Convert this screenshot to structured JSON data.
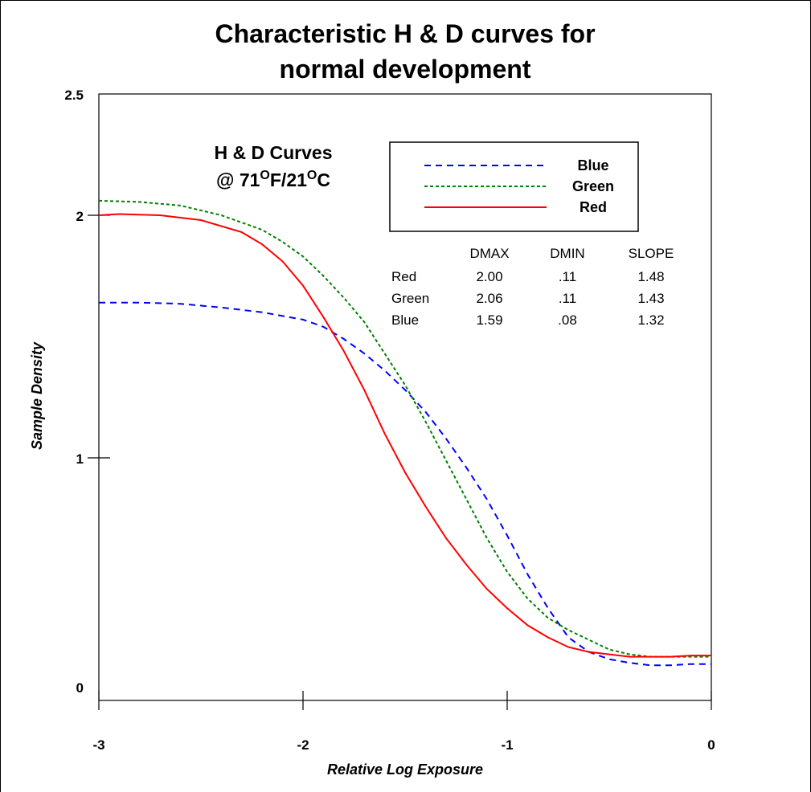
{
  "chart_data": {
    "type": "line",
    "title_lines": [
      "Characteristic H & D curves for",
      "normal development"
    ],
    "xlabel": "Relative Log Exposure",
    "ylabel": "Sample Density",
    "xlim": [
      -3,
      0
    ],
    "ylim": [
      0,
      2.5
    ],
    "x_ticks": [
      "-3",
      "-2",
      "-1",
      "0"
    ],
    "y_ticks": [
      "0",
      "1",
      "2",
      "2.5"
    ],
    "annotation": {
      "line1": "H & D Curves",
      "line2_parts": [
        "@ 71",
        "O",
        "F/21",
        "O",
        "C"
      ]
    },
    "legend": {
      "position": "top-right"
    },
    "series": [
      {
        "name": "Blue",
        "color": "#0000ff",
        "dash": "8,6",
        "x": [
          -3.0,
          -2.8,
          -2.6,
          -2.4,
          -2.2,
          -2.0,
          -1.9,
          -1.8,
          -1.7,
          -1.6,
          -1.5,
          -1.4,
          -1.3,
          -1.2,
          -1.1,
          -1.0,
          -0.9,
          -0.8,
          -0.7,
          -0.6,
          -0.5,
          -0.4,
          -0.3,
          -0.2,
          -0.1,
          0.0
        ],
        "y": [
          1.64,
          1.64,
          1.635,
          1.62,
          1.6,
          1.57,
          1.54,
          1.49,
          1.43,
          1.36,
          1.28,
          1.19,
          1.08,
          0.96,
          0.83,
          0.68,
          0.52,
          0.38,
          0.26,
          0.2,
          0.17,
          0.155,
          0.145,
          0.145,
          0.15,
          0.15
        ]
      },
      {
        "name": "Green",
        "color": "#008000",
        "dash": "4,3",
        "x": [
          -3.0,
          -2.8,
          -2.6,
          -2.4,
          -2.2,
          -2.1,
          -2.0,
          -1.9,
          -1.8,
          -1.7,
          -1.6,
          -1.5,
          -1.4,
          -1.3,
          -1.2,
          -1.1,
          -1.0,
          -0.9,
          -0.8,
          -0.7,
          -0.6,
          -0.5,
          -0.4,
          -0.3,
          -0.2,
          -0.1,
          0.0
        ],
        "y": [
          2.06,
          2.055,
          2.04,
          2.0,
          1.94,
          1.89,
          1.83,
          1.75,
          1.66,
          1.56,
          1.43,
          1.3,
          1.15,
          0.99,
          0.83,
          0.67,
          0.53,
          0.42,
          0.34,
          0.29,
          0.25,
          0.21,
          0.19,
          0.18,
          0.18,
          0.18,
          0.18
        ]
      },
      {
        "name": "Red",
        "color": "#ff0000",
        "dash": "",
        "x": [
          -3.0,
          -2.9,
          -2.7,
          -2.5,
          -2.3,
          -2.2,
          -2.1,
          -2.0,
          -1.9,
          -1.8,
          -1.7,
          -1.6,
          -1.5,
          -1.4,
          -1.3,
          -1.2,
          -1.1,
          -1.0,
          -0.9,
          -0.8,
          -0.7,
          -0.6,
          -0.5,
          -0.4,
          -0.3,
          -0.2,
          -0.1,
          0.0
        ],
        "y": [
          2.0,
          2.005,
          2.0,
          1.98,
          1.93,
          1.88,
          1.81,
          1.71,
          1.58,
          1.44,
          1.28,
          1.1,
          0.94,
          0.8,
          0.67,
          0.56,
          0.46,
          0.38,
          0.31,
          0.26,
          0.22,
          0.2,
          0.19,
          0.18,
          0.18,
          0.18,
          0.185,
          0.185
        ]
      }
    ],
    "table": {
      "headers": [
        "DMAX",
        "DMIN",
        "SLOPE"
      ],
      "rows": [
        {
          "label": "Red",
          "values": [
            "2.00",
            ".11",
            "1.48"
          ]
        },
        {
          "label": "Green",
          "values": [
            "2.06",
            ".11",
            "1.43"
          ]
        },
        {
          "label": "Blue",
          "values": [
            "1.59",
            ".08",
            "1.32"
          ]
        }
      ]
    }
  }
}
